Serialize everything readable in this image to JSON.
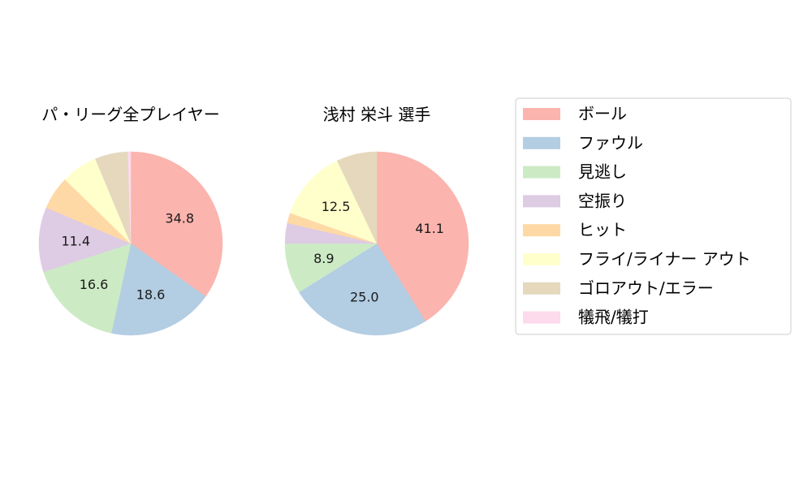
{
  "legend": {
    "entries": [
      {
        "label": "ボール",
        "color": "#fbb4ae"
      },
      {
        "label": "ファウル",
        "color": "#b3cde3"
      },
      {
        "label": "見逃し",
        "color": "#ccebc5"
      },
      {
        "label": "空振り",
        "color": "#decbe4"
      },
      {
        "label": "ヒット",
        "color": "#fed9a6"
      },
      {
        "label": "フライ/ライナー アウト",
        "color": "#ffffcc"
      },
      {
        "label": "ゴロアウト/エラー",
        "color": "#e5d8bd"
      },
      {
        "label": "犠飛/犠打",
        "color": "#fddaec"
      }
    ]
  },
  "chart_data": [
    {
      "type": "pie",
      "title": "パ・リーグ全プレイヤー",
      "categories": [
        "ボール",
        "ファウル",
        "見逃し",
        "空振り",
        "ヒット",
        "フライ/ライナー アウト",
        "ゴロアウト/エラー",
        "犠飛/犠打"
      ],
      "values": [
        34.8,
        18.6,
        16.6,
        11.4,
        5.9,
        6.4,
        5.8,
        0.5
      ],
      "labels": [
        "34.8",
        "18.6",
        "16.6",
        "11.4",
        "",
        "",
        "",
        ""
      ],
      "start_angle": 90,
      "direction": "clockwise"
    },
    {
      "type": "pie",
      "title": "浅村 栄斗  選手",
      "categories": [
        "ボール",
        "ファウル",
        "見逃し",
        "空振り",
        "ヒット",
        "フライ/ライナー アウト",
        "ゴロアウト/エラー",
        "犠飛/犠打"
      ],
      "values": [
        41.1,
        25.0,
        8.9,
        3.6,
        1.8,
        12.5,
        7.1,
        0.0
      ],
      "labels": [
        "41.1",
        "25.0",
        "8.9",
        "",
        "",
        "12.5",
        "",
        ""
      ],
      "start_angle": 90,
      "direction": "clockwise"
    }
  ]
}
